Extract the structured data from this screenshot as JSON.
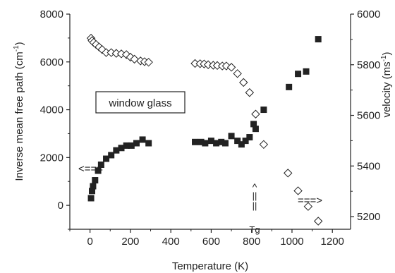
{
  "chart_data": {
    "type": "scatter",
    "xlabel": "Temperature (K)",
    "ylabel": "Inverse mean free path (cm",
    "ylabel_sup": "-1",
    "ylabel_close": ")",
    "y2label": "velocity (ms",
    "y2label_sup": "-1",
    "y2label_close": ")",
    "xlim": [
      -100,
      1290
    ],
    "ylim": [
      -1000,
      8000
    ],
    "y2lim": [
      5150,
      6000
    ],
    "x_ticks": [
      0,
      200,
      400,
      600,
      800,
      1000,
      1200
    ],
    "y_ticks": [
      0,
      2000,
      4000,
      6000,
      8000
    ],
    "y2_ticks": [
      5200,
      5400,
      5600,
      5800,
      6000
    ],
    "grid": false,
    "series": [
      {
        "axis": "left",
        "marker": "filled-square",
        "color": "#222222",
        "x": [
          5,
          10,
          15,
          25,
          40,
          55,
          80,
          105,
          130,
          155,
          180,
          205,
          230,
          260,
          290,
          520,
          550,
          570,
          600,
          625,
          650,
          670,
          700,
          730,
          750,
          770,
          790,
          810,
          820,
          860,
          985,
          1030,
          1070,
          1130
        ],
        "y": [
          300,
          600,
          800,
          1050,
          1450,
          1700,
          1950,
          2100,
          2300,
          2400,
          2500,
          2500,
          2600,
          2750,
          2600,
          2650,
          2650,
          2600,
          2700,
          2600,
          2650,
          2600,
          2900,
          2700,
          2550,
          2700,
          2850,
          3400,
          3200,
          4000,
          4950,
          5500,
          5600,
          6950
        ]
      },
      {
        "axis": "right",
        "marker": "open-diamond",
        "color": "#222222",
        "x": [
          5,
          10,
          18,
          30,
          45,
          60,
          80,
          105,
          130,
          155,
          180,
          200,
          220,
          250,
          270,
          290,
          520,
          545,
          565,
          585,
          610,
          630,
          655,
          675,
          700,
          730,
          760,
          790,
          820,
          860,
          980,
          1030,
          1080,
          1130
        ],
        "y": [
          5905,
          5895,
          5888,
          5880,
          5870,
          5860,
          5848,
          5848,
          5845,
          5843,
          5840,
          5830,
          5822,
          5815,
          5812,
          5810,
          5805,
          5804,
          5803,
          5800,
          5798,
          5797,
          5795,
          5795,
          5790,
          5765,
          5730,
          5690,
          5605,
          5485,
          5372,
          5302,
          5240,
          5182
        ]
      }
    ],
    "annotations": [
      {
        "text": "window glass",
        "boxed": true
      },
      {
        "text": "<===",
        "meaning": "left axis"
      },
      {
        "text": "===>",
        "meaning": "right axis"
      },
      {
        "text": "^\n||\n||\nTg",
        "at_x": 810
      }
    ]
  }
}
